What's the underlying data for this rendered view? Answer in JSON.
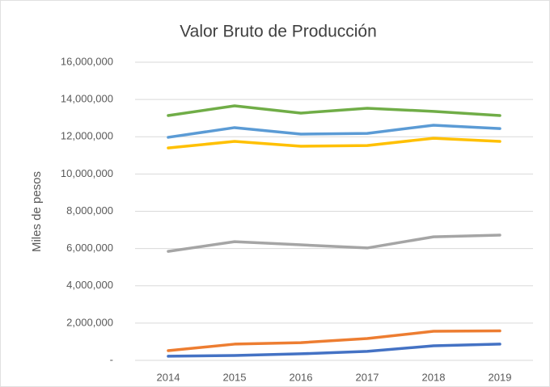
{
  "chart_data": {
    "type": "line",
    "title": "Valor Bruto de Producción",
    "y_label": "Miles de pesos",
    "categories": [
      "2014",
      "2015",
      "2016",
      "2017",
      "2018",
      "2019"
    ],
    "series": [
      {
        "color": "#70ad47",
        "values": [
          13140000,
          13660000,
          13270000,
          13530000,
          13360000,
          13140000
        ]
      },
      {
        "color": "#5b9bd5",
        "values": [
          11970000,
          12490000,
          12140000,
          12180000,
          12620000,
          12440000
        ]
      },
      {
        "color": "#ffc000",
        "values": [
          11400000,
          11750000,
          11490000,
          11530000,
          11920000,
          11750000
        ]
      },
      {
        "color": "#a5a5a5",
        "values": [
          5850000,
          6370000,
          6200000,
          6030000,
          6630000,
          6720000
        ]
      },
      {
        "color": "#ed7d31",
        "values": [
          520000,
          870000,
          950000,
          1170000,
          1560000,
          1580000
        ]
      },
      {
        "color": "#4472c4",
        "values": [
          220000,
          260000,
          350000,
          480000,
          780000,
          870000
        ]
      }
    ],
    "ylim": [
      0,
      16000000
    ],
    "yticks": [
      {
        "value": 0,
        "label": "-"
      },
      {
        "value": 2000000,
        "label": "2,000,000"
      },
      {
        "value": 4000000,
        "label": "4,000,000"
      },
      {
        "value": 6000000,
        "label": "6,000,000"
      },
      {
        "value": 8000000,
        "label": "8,000,000"
      },
      {
        "value": 10000000,
        "label": "10,000,000"
      },
      {
        "value": 12000000,
        "label": "12,000,000"
      },
      {
        "value": 14000000,
        "label": "14,000,000"
      },
      {
        "value": 16000000,
        "label": "16,000,000"
      }
    ],
    "grid": true
  }
}
